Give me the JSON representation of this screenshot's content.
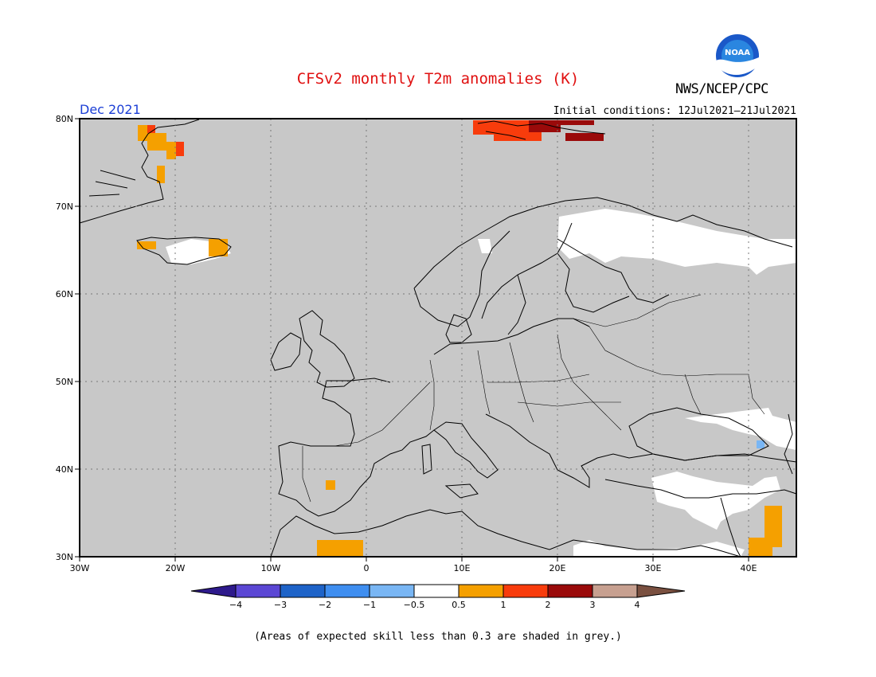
{
  "title": "CFSv2 monthly T2m anomalies (K)",
  "agency": "NWS/NCEP/CPC",
  "logo_text": "NOAA",
  "target_month": "Dec 2021",
  "initial_conditions": "Initial conditions: 12Jul2021–21Jul2021",
  "footnote": "(Areas of expected skill less than 0.3 are shaded in grey.)",
  "map": {
    "lon_range": [
      -30,
      45
    ],
    "lat_range": [
      30,
      80
    ],
    "lon_ticks": [
      "30W",
      "20W",
      "10W",
      "0",
      "10E",
      "20E",
      "30E",
      "40E"
    ],
    "lat_ticks": [
      "30N",
      "40N",
      "50N",
      "60N",
      "70N",
      "80N"
    ],
    "gridlines": "dotted every 10 degrees",
    "background_skill_shading": "#c8c8c8"
  },
  "colorbar": {
    "labels": [
      "−4",
      "−3",
      "−2",
      "−1",
      "−0.5",
      "0.5",
      "1",
      "2",
      "3",
      "4"
    ],
    "colors": [
      "#2e1a8c",
      "#5b47d4",
      "#1e63c8",
      "#3f8ef0",
      "#79b6f4",
      "#ffffff",
      "#f5a000",
      "#f83c0c",
      "#9a0a0a",
      "#c7a090",
      "#7a5040"
    ]
  },
  "colors": {
    "title": "#e01010",
    "month": "#1c3fd6",
    "grey_land_sea": "#c8c8c8"
  }
}
